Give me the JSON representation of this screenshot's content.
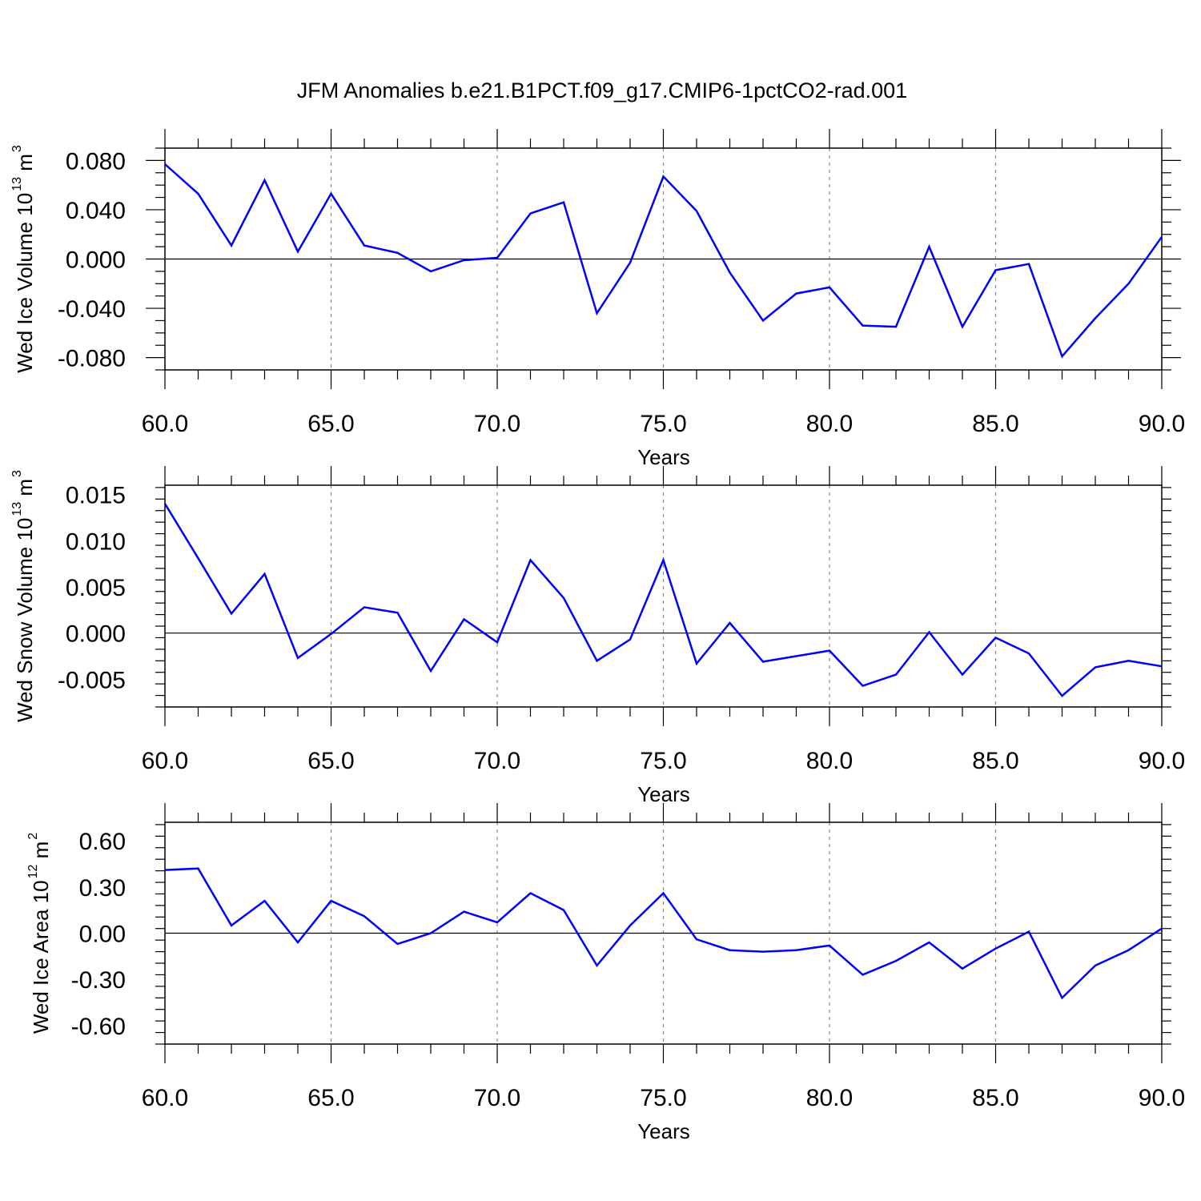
{
  "title": "JFM Anomalies b.e21.B1PCT.f09_g17.CMIP6-1pctCO2-rad.001",
  "colors": {
    "series": "#0000ff",
    "axis": "#000000",
    "grid": "#888888"
  },
  "chart_data": [
    {
      "type": "line",
      "ylabel_main": "Wed Ice Volume 10",
      "ylabel_exp": "13",
      "ylabel_unit": " m",
      "ylabel_unit_exp": "3",
      "xlabel": "Years",
      "xlim": [
        60,
        90
      ],
      "ylim": [
        -0.09,
        0.09
      ],
      "xticks": [
        60,
        65,
        70,
        75,
        80,
        85,
        90
      ],
      "xtick_labels": [
        "60.0",
        "65.0",
        "70.0",
        "75.0",
        "80.0",
        "85.0",
        "90.0"
      ],
      "yticks": [
        0.08,
        0.04,
        0.0,
        -0.04,
        -0.08
      ],
      "ytick_labels": [
        "0.080",
        "0.040",
        "0.000",
        "-0.040",
        "-0.080"
      ],
      "x": [
        60,
        61,
        62,
        63,
        64,
        65,
        66,
        67,
        68,
        69,
        70,
        71,
        72,
        73,
        74,
        75,
        76,
        77,
        78,
        79,
        80,
        81,
        82,
        83,
        84,
        85,
        86,
        87,
        88,
        89,
        90
      ],
      "values": [
        0.077,
        0.053,
        0.011,
        0.064,
        0.006,
        0.053,
        0.011,
        0.005,
        -0.01,
        -0.001,
        0.001,
        0.037,
        0.046,
        -0.044,
        -0.003,
        0.067,
        0.039,
        -0.011,
        -0.05,
        -0.028,
        -0.023,
        -0.054,
        -0.055,
        0.01,
        -0.055,
        -0.009,
        -0.004,
        -0.079,
        -0.048,
        -0.02,
        0.018
      ]
    },
    {
      "type": "line",
      "ylabel_main": "Wed Snow Volume 10",
      "ylabel_exp": "13",
      "ylabel_unit": " m",
      "ylabel_unit_exp": "3",
      "xlabel": "Years",
      "xlim": [
        60,
        90
      ],
      "ylim": [
        -0.008,
        0.016
      ],
      "xticks": [
        60,
        65,
        70,
        75,
        80,
        85,
        90
      ],
      "xtick_labels": [
        "60.0",
        "65.0",
        "70.0",
        "75.0",
        "80.0",
        "85.0",
        "90.0"
      ],
      "yticks": [
        0.015,
        0.01,
        0.005,
        0.0,
        -0.005
      ],
      "ytick_labels": [
        "0.015",
        "0.010",
        "0.005",
        "0.000",
        "-0.005"
      ],
      "x": [
        60,
        61,
        62,
        63,
        64,
        65,
        66,
        67,
        68,
        69,
        70,
        71,
        72,
        73,
        74,
        75,
        76,
        77,
        78,
        79,
        80,
        81,
        82,
        83,
        84,
        85,
        86,
        87,
        88,
        89,
        90
      ],
      "values": [
        0.014,
        0.0081,
        0.0021,
        0.0064,
        -0.0027,
        -0.0001,
        0.0028,
        0.0022,
        -0.0041,
        0.0015,
        -0.001,
        0.0079,
        0.0038,
        -0.003,
        -0.0007,
        0.0079,
        -0.0033,
        0.0011,
        -0.0031,
        -0.0025,
        -0.0019,
        -0.0057,
        -0.0045,
        0.0001,
        -0.0045,
        -0.0005,
        -0.0022,
        -0.0068,
        -0.0037,
        -0.003,
        -0.0036
      ]
    },
    {
      "type": "line",
      "ylabel_main": "Wed Ice Area 10",
      "ylabel_exp": "12",
      "ylabel_unit": " m",
      "ylabel_unit_exp": "2",
      "xlabel": "Years",
      "xlim": [
        60,
        90
      ],
      "ylim": [
        -0.72,
        0.72
      ],
      "xticks": [
        60,
        65,
        70,
        75,
        80,
        85,
        90
      ],
      "xtick_labels": [
        "60.0",
        "65.0",
        "70.0",
        "75.0",
        "80.0",
        "85.0",
        "90.0"
      ],
      "yticks": [
        0.6,
        0.3,
        0.0,
        -0.3,
        -0.6
      ],
      "ytick_labels": [
        "0.60",
        "0.30",
        "0.00",
        "-0.30",
        "-0.60"
      ],
      "x": [
        60,
        61,
        62,
        63,
        64,
        65,
        66,
        67,
        68,
        69,
        70,
        71,
        72,
        73,
        74,
        75,
        76,
        77,
        78,
        79,
        80,
        81,
        82,
        83,
        84,
        85,
        86,
        87,
        88,
        89,
        90
      ],
      "values": [
        0.41,
        0.42,
        0.05,
        0.21,
        -0.06,
        0.21,
        0.11,
        -0.07,
        0.0,
        0.14,
        0.07,
        0.26,
        0.15,
        -0.21,
        0.05,
        0.26,
        -0.04,
        -0.11,
        -0.12,
        -0.11,
        -0.08,
        -0.27,
        -0.18,
        -0.06,
        -0.23,
        -0.1,
        0.01,
        -0.42,
        -0.21,
        -0.11,
        0.03
      ]
    }
  ]
}
